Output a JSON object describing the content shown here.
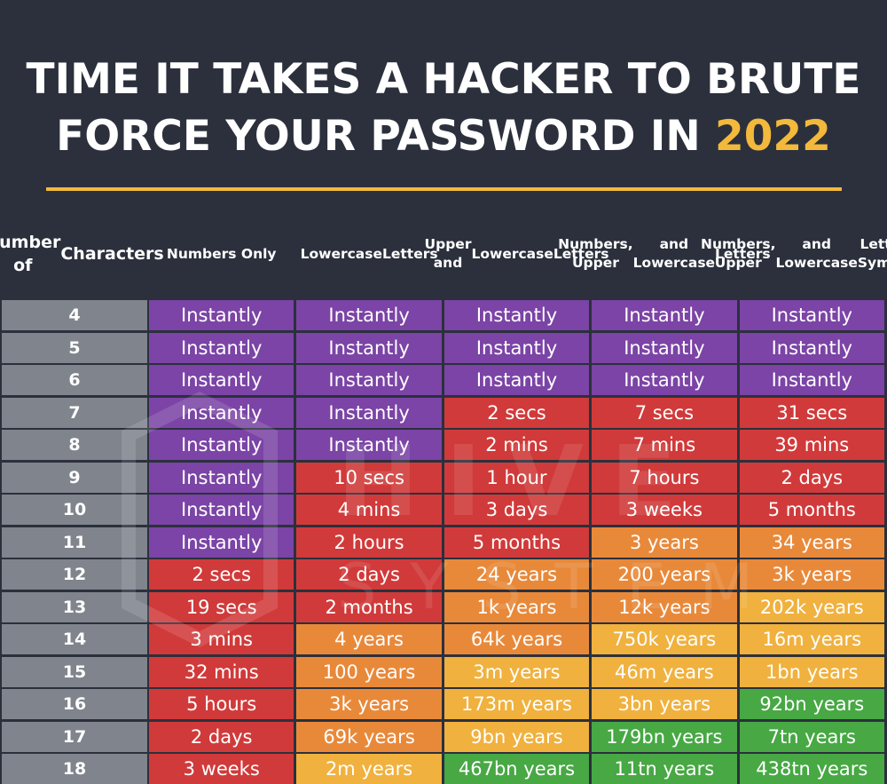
{
  "title_line1": "TIME IT TAKES A HACKER TO BRUTE",
  "title_line2": "FORCE YOUR PASSWORD IN ",
  "title_year": "2022",
  "watermark_lines": [
    "HIVE",
    "SYSTEMS"
  ],
  "colors": {
    "instant": "#7b44a6",
    "seconds_to_months": "#d13a3a",
    "years": "#e8893a",
    "thousands_years": "#f0b13e",
    "billions_plus": "#47a844",
    "row_label": "#7f848d",
    "background": "#2b303c",
    "accent": "#f3b93b"
  },
  "chart_data": {
    "type": "table",
    "row_header": "Number of Characters",
    "columns": [
      "Numbers Only",
      "Lowercase Letters",
      "Upper and Lowercase Letters",
      "Numbers, Upper and Lowercase Letters",
      "Numbers, Upper and Lowercase Letters, Symbols"
    ],
    "column_lines": [
      [
        "Numbers Only"
      ],
      [
        "Lowercase",
        "Letters"
      ],
      [
        "Upper and",
        "Lowercase",
        "Letters"
      ],
      [
        "Numbers, Upper",
        "and Lowercase",
        "Letters"
      ],
      [
        "Numbers, Upper",
        "and Lowercase",
        "Letters, Symbols"
      ]
    ],
    "row_header_lines": [
      "Number of",
      "Characters"
    ],
    "rows": [
      {
        "chars": "4",
        "values": [
          "Instantly",
          "Instantly",
          "Instantly",
          "Instantly",
          "Instantly"
        ],
        "tiers": [
          0,
          0,
          0,
          0,
          0
        ]
      },
      {
        "chars": "5",
        "values": [
          "Instantly",
          "Instantly",
          "Instantly",
          "Instantly",
          "Instantly"
        ],
        "tiers": [
          0,
          0,
          0,
          0,
          0
        ]
      },
      {
        "chars": "6",
        "values": [
          "Instantly",
          "Instantly",
          "Instantly",
          "Instantly",
          "Instantly"
        ],
        "tiers": [
          0,
          0,
          0,
          0,
          0
        ]
      },
      {
        "chars": "7",
        "values": [
          "Instantly",
          "Instantly",
          "2 secs",
          "7 secs",
          "31 secs"
        ],
        "tiers": [
          0,
          0,
          1,
          1,
          1
        ]
      },
      {
        "chars": "8",
        "values": [
          "Instantly",
          "Instantly",
          "2 mins",
          "7 mins",
          "39 mins"
        ],
        "tiers": [
          0,
          0,
          1,
          1,
          1
        ]
      },
      {
        "chars": "9",
        "values": [
          "Instantly",
          "10 secs",
          "1 hour",
          "7 hours",
          "2 days"
        ],
        "tiers": [
          0,
          1,
          1,
          1,
          1
        ]
      },
      {
        "chars": "10",
        "values": [
          "Instantly",
          "4 mins",
          "3 days",
          "3 weeks",
          "5 months"
        ],
        "tiers": [
          0,
          1,
          1,
          1,
          1
        ]
      },
      {
        "chars": "11",
        "values": [
          "Instantly",
          "2 hours",
          "5 months",
          "3 years",
          "34 years"
        ],
        "tiers": [
          0,
          1,
          1,
          2,
          2
        ]
      },
      {
        "chars": "12",
        "values": [
          "2 secs",
          "2 days",
          "24 years",
          "200 years",
          "3k years"
        ],
        "tiers": [
          1,
          1,
          2,
          2,
          2
        ]
      },
      {
        "chars": "13",
        "values": [
          "19 secs",
          "2 months",
          "1k years",
          "12k years",
          "202k years"
        ],
        "tiers": [
          1,
          1,
          2,
          2,
          3
        ]
      },
      {
        "chars": "14",
        "values": [
          "3 mins",
          "4 years",
          "64k years",
          "750k years",
          "16m years"
        ],
        "tiers": [
          1,
          2,
          2,
          3,
          3
        ]
      },
      {
        "chars": "15",
        "values": [
          "32 mins",
          "100 years",
          "3m years",
          "46m years",
          "1bn years"
        ],
        "tiers": [
          1,
          2,
          3,
          3,
          3
        ]
      },
      {
        "chars": "16",
        "values": [
          "5 hours",
          "3k years",
          "173m years",
          "3bn years",
          "92bn years"
        ],
        "tiers": [
          1,
          2,
          3,
          3,
          4
        ]
      },
      {
        "chars": "17",
        "values": [
          "2 days",
          "69k years",
          "9bn years",
          "179bn years",
          "7tn years"
        ],
        "tiers": [
          1,
          2,
          3,
          4,
          4
        ]
      },
      {
        "chars": "18",
        "values": [
          "3 weeks",
          "2m years",
          "467bn years",
          "11tn years",
          "438tn years"
        ],
        "tiers": [
          1,
          3,
          4,
          4,
          4
        ]
      }
    ]
  }
}
